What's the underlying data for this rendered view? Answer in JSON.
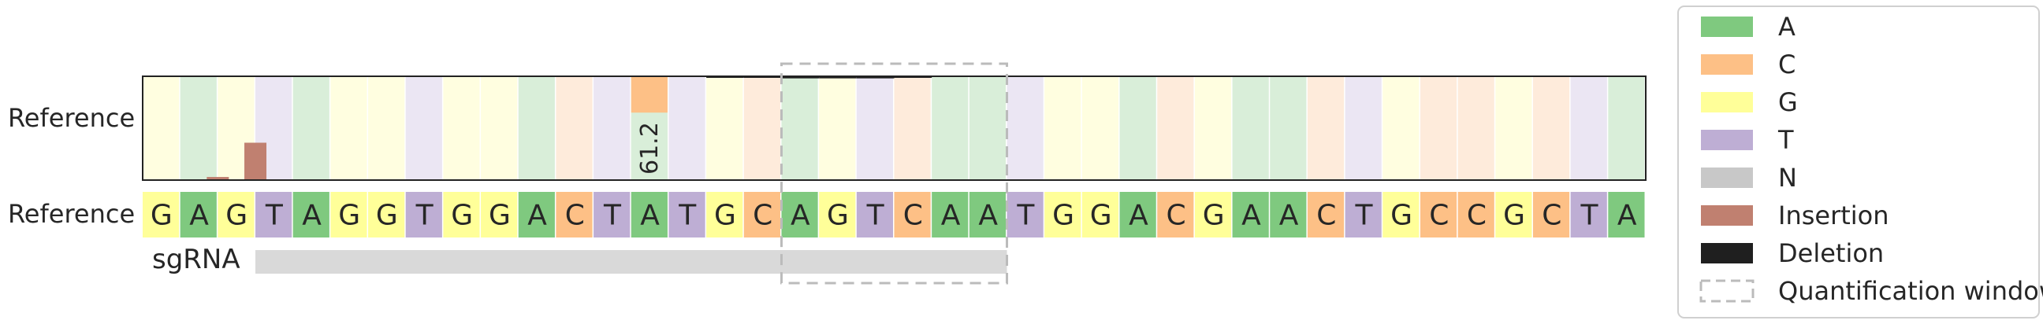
{
  "chart_data": {
    "type": "heatmap",
    "title": "",
    "row_labels": {
      "top": "Reference",
      "bottom": "Reference"
    },
    "sgrna_label": "sgRNA",
    "reference_sequence": [
      "G",
      "A",
      "G",
      "T",
      "A",
      "G",
      "G",
      "T",
      "G",
      "G",
      "A",
      "C",
      "T",
      "A",
      "T",
      "G",
      "C",
      "A",
      "G",
      "T",
      "C",
      "A",
      "A",
      "T",
      "G",
      "G",
      "A",
      "C",
      "G",
      "A",
      "A",
      "C",
      "T",
      "G",
      "C",
      "C",
      "G",
      "C",
      "T",
      "A"
    ],
    "sgrna_span": {
      "start_index": 3,
      "end_index": 22
    },
    "quantification_window": {
      "start_index": 17,
      "end_index": 22
    },
    "substitution_cells": [
      {
        "index": 13,
        "base": "C",
        "fraction": 0.35
      },
      {
        "index": 13,
        "base": "A",
        "fraction": 0.612,
        "label": "61.2"
      }
    ],
    "insertions": [
      {
        "index": 2,
        "value": 0.03
      },
      {
        "index": 3,
        "value": 0.36
      }
    ],
    "deletions": [
      {
        "index": 15,
        "value": 0.01
      },
      {
        "index": 16,
        "value": 0.01
      },
      {
        "index": 17,
        "value": 0.02
      },
      {
        "index": 18,
        "value": 0.02
      },
      {
        "index": 19,
        "value": 0.02
      },
      {
        "index": 20,
        "value": 0.01
      }
    ],
    "legend": [
      {
        "label": "A",
        "color": "#7fc97f",
        "kind": "fill"
      },
      {
        "label": "C",
        "color": "#fdc086",
        "kind": "fill"
      },
      {
        "label": "G",
        "color": "#ffff99",
        "kind": "fill"
      },
      {
        "label": "T",
        "color": "#beaed4",
        "kind": "fill"
      },
      {
        "label": "N",
        "color": "#c8c8c8",
        "kind": "fill"
      },
      {
        "label": "Insertion",
        "color": "#c08070",
        "kind": "fill"
      },
      {
        "label": "Deletion",
        "color": "#1f1f1f",
        "kind": "fill"
      },
      {
        "label": "Quantification window",
        "color": "#bbbbbb",
        "kind": "dashed"
      }
    ],
    "colors": {
      "A": "#7fc97f",
      "C": "#fdc086",
      "G": "#ffff99",
      "T": "#beaed4",
      "N": "#c8c8c8",
      "A_light": "#d9eed9",
      "C_light": "#feebdb",
      "G_light": "#fffee0",
      "T_light": "#ebe6f3",
      "insertion": "#c08070",
      "deletion": "#1f1f1f",
      "sgrna_bar": "#d9d9d9",
      "window": "#bbbbbb"
    },
    "legend_placement": "right"
  }
}
